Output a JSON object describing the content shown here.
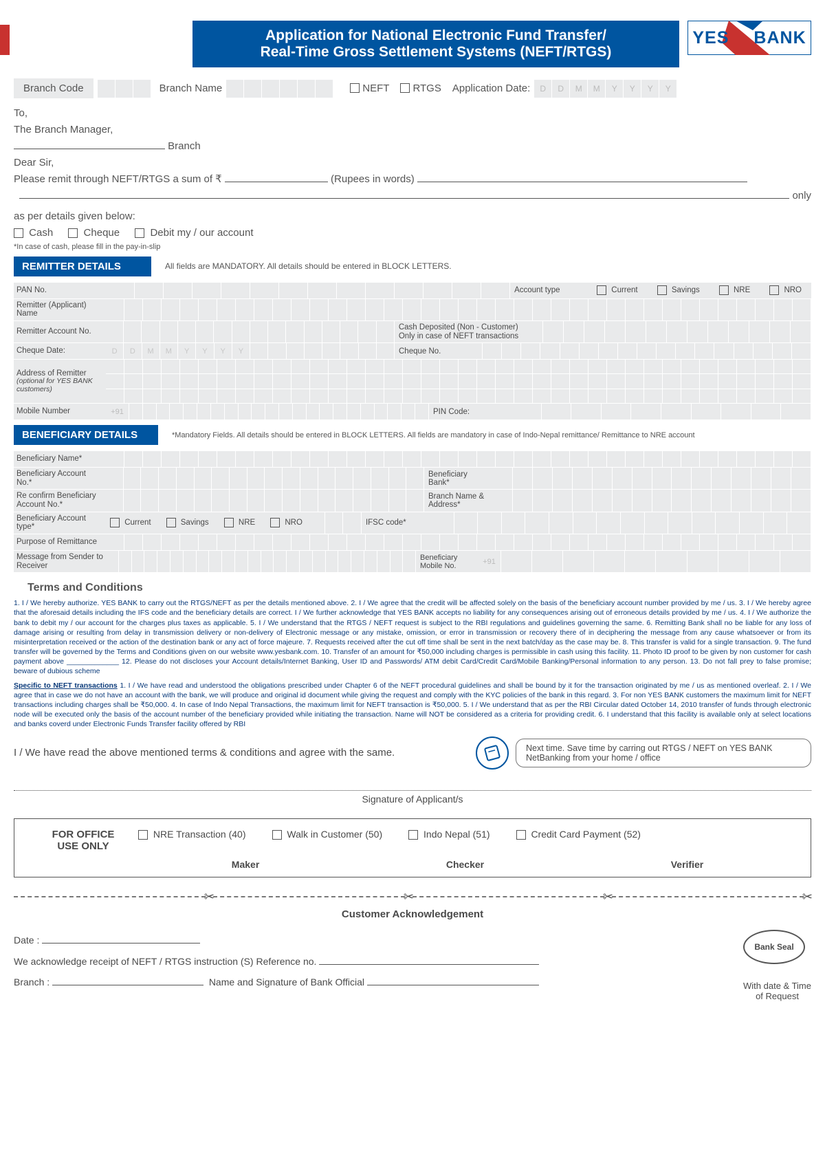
{
  "colors": {
    "blue": "#0055a0",
    "red": "#c8322f",
    "cellbg": "#e9eaeb"
  },
  "title_line1": "Application for National Electronic Fund Transfer/",
  "title_line2": "Real-Time Gross Settlement Systems (NEFT/RTGS)",
  "logo": {
    "yes": "YES",
    "bank": "BANK"
  },
  "top": {
    "branch_code": "Branch Code",
    "branch_name": "Branch Name",
    "neft": "NEFT",
    "rtgs": "RTGS",
    "app_date": "Application Date:",
    "date_ph": [
      "D",
      "D",
      "M",
      "M",
      "Y",
      "Y",
      "Y",
      "Y"
    ]
  },
  "letter": {
    "to": "To,",
    "mgr": "The Branch Manager,",
    "branch_suffix": "Branch",
    "dear": "Dear Sir,",
    "remit": "Please remit through NEFT/RTGS a sum of ₹",
    "rupees_words": "(Rupees in words)",
    "only": "only",
    "as_per": "as per details given below:",
    "cash": "Cash",
    "cheque": "Cheque",
    "debit": "Debit my / our account",
    "cash_note": "*In case of cash, please fill in the pay-in-slip"
  },
  "remitter": {
    "hdr": "REMITTER DETAILS",
    "note": "All fields are MANDATORY. All details  should be entered in BLOCK LETTERS.",
    "pan": "PAN No.",
    "acct_type": "Account type",
    "current": "Current",
    "savings": "Savings",
    "nre": "NRE",
    "nro": "NRO",
    "name": "Remitter (Applicant) Name",
    "acct_no": "Remitter Account No.",
    "cash_dep1": "Cash Deposited (Non - Customer)",
    "cash_dep2": "Only in case of NEFT transactions",
    "chq_date": "Cheque Date:",
    "chq_ph": [
      "D",
      "D",
      "M",
      "M",
      "Y",
      "Y",
      "Y",
      "Y"
    ],
    "chq_no": "Cheque No.",
    "addr": "Address of Remitter",
    "addr_sub": "(optional for YES BANK customers)",
    "mobile": "Mobile Number",
    "mob_pre": "+91",
    "pin": "PIN Code:"
  },
  "beneficiary": {
    "hdr": "BENEFICIARY DETAILS",
    "note": "*Mandatory Fields. All details should be entered in BLOCK LETTERS. All fields are mandatory in case of Indo-Nepal remittance/ Remittance to NRE account",
    "name": "Beneficiary Name*",
    "acct": "Beneficiary Account No.*",
    "bank": "Beneficiary Bank*",
    "reconf": "Re confirm Beneficiary Account No.*",
    "branch": "Branch Name & Address*",
    "acct_type": "Beneficiary Account type*",
    "current": "Current",
    "savings": "Savings",
    "nre": "NRE",
    "nro": "NRO",
    "ifsc": "IFSC code*",
    "purpose": "Purpose of Remittance",
    "msg": "Message from Sender to Receiver",
    "bmob": "Beneficiary Mobile No.",
    "mob_pre": "+91"
  },
  "tc": {
    "hdr": "Terms and Conditions",
    "p1": "1. I / We hereby authorize. YES BANK to carry out the RTGS/NEFT as per the details mentioned above. 2. I / We agree that the credit will be affected solely on the basis of the beneficiary account number provided by me / us. 3. I / We hereby agree that the aforesaid details including the IFS code and the beneficiary details are correct. I / We further acknowledge that YES BANK accepts no liability for any consequences arising out of erroneous details provided by me / us. 4. I / We authorize the bank to debit my / our account for the charges plus taxes as applicable. 5. I / We understand that the RTGS / NEFT request is subject to the RBI regulations and guidelines governing the same. 6. Remitting Bank shall no be liable for any loss of damage arising or resulting from delay in transmission delivery or non-delivery of Electronic message or any mistake, omission, or error in transmission or recovery there of in deciphering the message from any cause whatsoever or from its misinterpretation received or the action of the destination bank or any act of force majeure. 7. Requests received after the cut off time shall be sent in the next batch/day as the case may be. 8. This transfer is valid for a single transaction. 9. The fund transfer will be governed by the Terms and Conditions given on our website www.yesbank.com. 10. Transfer of an amount for ₹50,000 including charges is permissible in cash using this facility. 11. Photo ID proof to be given by non customer for cash payment above _____________ 12. Please do not discloses your Account details/Internet Banking, User ID and Passwords/ ATM debit Card/Credit Card/Mobile Banking/Personal information to any person. 13. Do not fall prey to false promise; beware of dubious scheme",
    "p2_hdr": "Specific to NEFT transactions",
    "p2": " 1. I / We have read and understood the obligations prescribed under Chapter 6 of the NEFT procedural guidelines and shall be bound by it for the transaction originated by me / us as mentioned overleaf. 2. I / We agree that in case we do not have an account with the bank, we will produce and original id document while giving the request and comply with the KYC policies of the bank in this regard. 3. For non YES BANK customers the maximum limit for NEFT transactions including charges shall be ₹50,000. 4. In case of Indo Nepal Transactions, the maximum limit for NEFT transaction is ₹50,000. 5. I / We understand that as per the RBI Circular dated October 14, 2010 transfer of funds through electronic node will be executed only the basis of the account number of the beneficiary provided while initiating the transaction. Name will NOT be considered as a criteria for providing credit. 6. I understand that this facility is available only at select locations and banks coverd under Electronic Funds Transfer facility offered by RBI",
    "agree": "I / We have read the above mentioned terms & conditions and agree with the same.",
    "netbank": "Next time. Save time by carring out RTGS / NEFT on YES BANK NetBanking from your home / office",
    "sig": "Signature of Applicant/s"
  },
  "office": {
    "hdr1": "FOR OFFICE",
    "hdr2": "USE ONLY",
    "nre": "NRE Transaction (40)",
    "walk": "Walk in Customer (50)",
    "indo": "Indo Nepal (51)",
    "cc": "Credit Card Payment (52)",
    "maker": "Maker",
    "checker": "Checker",
    "verifier": "Verifier"
  },
  "ack": {
    "hdr": "Customer Acknowledgement",
    "date": "Date :",
    "seal": "Bank Seal",
    "receipt": "We acknowledge receipt of NEFT / RTGS instruction (S) Reference no.",
    "branch": "Branch :",
    "official": "Name and Signature of Bank Official",
    "withdate1": "With date & Time",
    "withdate2": "of Request"
  }
}
